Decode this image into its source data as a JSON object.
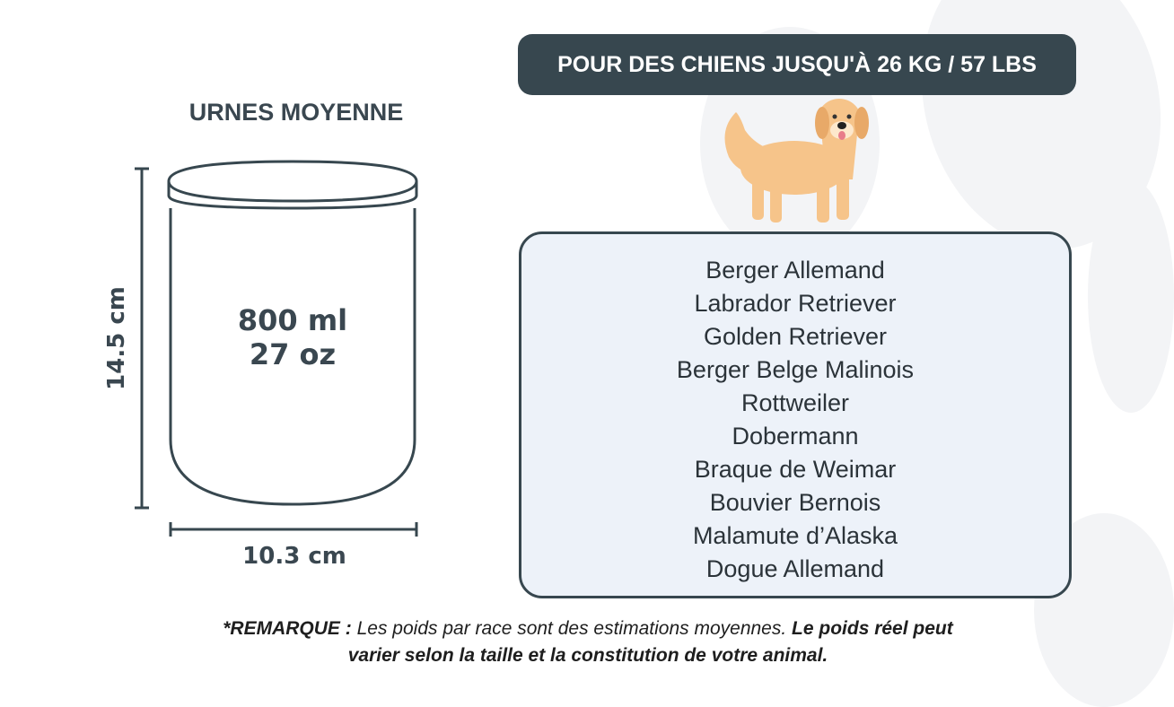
{
  "header": {
    "weight_banner": "POUR DES CHIENS JUSQU'À 26 KG / 57 LBS"
  },
  "urn": {
    "title": "URNES MOYENNE",
    "volume_ml": "800 ml",
    "volume_oz": "27 oz",
    "height": "14.5 cm",
    "width": "10.3 cm"
  },
  "breeds": [
    "Berger Allemand",
    "Labrador Retriever",
    "Golden Retriever",
    "Berger Belge Malinois",
    "Rottweiler",
    "Dobermann",
    "Braque de Weimar",
    "Bouvier Bernois",
    "Malamute d’Alaska",
    "Dogue Allemand"
  ],
  "note": {
    "label": "*REMARQUE :",
    "text": " Les poids par race sont des estimations moyennes. ",
    "bold_line1": "Le poids réel peut",
    "bold_line2": "varier selon la taille et la constitution de votre animal."
  },
  "colors": {
    "dark": "#37474f",
    "box_bg": "#edf2f9",
    "dog": "#f6c48a"
  },
  "icons": {
    "illustration": "golden-retriever-dog",
    "background": "paw-print"
  }
}
